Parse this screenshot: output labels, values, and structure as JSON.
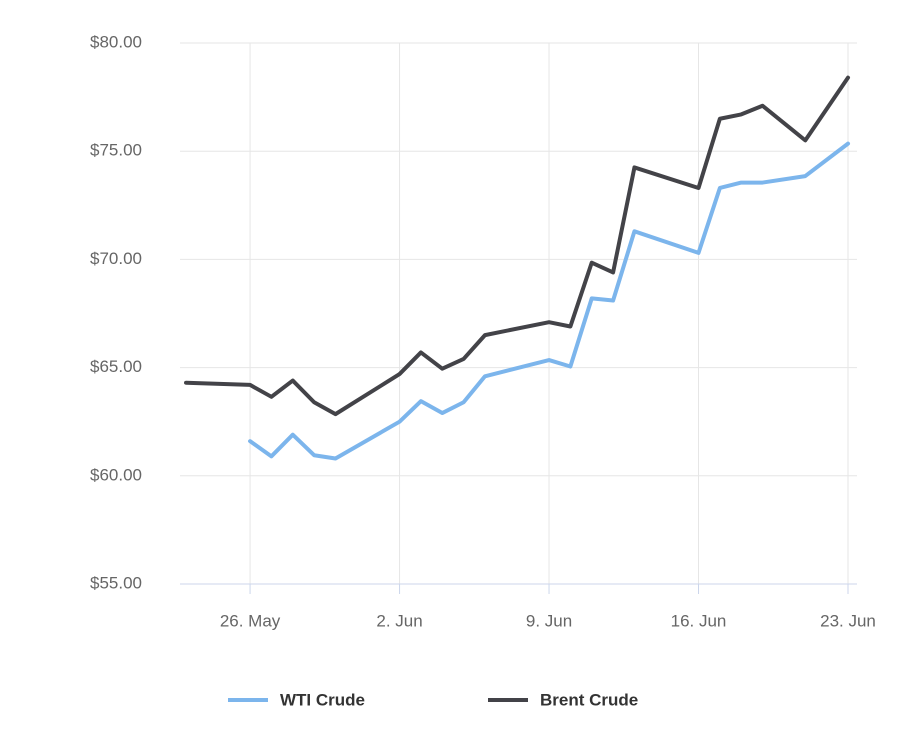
{
  "chart_data": {
    "type": "line",
    "x": [
      "23. May",
      "26. May",
      "27. May",
      "28. May",
      "29. May",
      "30. May",
      "2. Jun",
      "3. Jun",
      "4. Jun",
      "5. Jun",
      "6. Jun",
      "9. Jun",
      "10. Jun",
      "11. Jun",
      "12. Jun",
      "13. Jun",
      "16. Jun",
      "17. Jun",
      "18. Jun",
      "19. Jun",
      "21. Jun",
      "23. Jun"
    ],
    "series": [
      {
        "name": "WTI Crude",
        "color": "#7cb5ec",
        "values": [
          null,
          61.6,
          60.9,
          61.9,
          60.95,
          60.8,
          62.5,
          63.45,
          62.9,
          63.4,
          64.6,
          65.35,
          65.05,
          68.2,
          68.1,
          71.3,
          70.3,
          73.3,
          73.55,
          73.55,
          73.85,
          75.35
        ]
      },
      {
        "name": "Brent Crude",
        "color": "#434348",
        "values": [
          64.3,
          64.2,
          63.65,
          64.4,
          63.4,
          62.85,
          64.7,
          65.7,
          64.95,
          65.4,
          66.5,
          67.1,
          66.9,
          69.85,
          69.4,
          74.25,
          73.3,
          76.5,
          76.7,
          77.1,
          75.5,
          78.4
        ]
      }
    ],
    "xlim": [
      "23. May",
      "23. Jun"
    ],
    "xticks": [
      "26. May",
      "2. Jun",
      "9. Jun",
      "16. Jun",
      "23. Jun"
    ],
    "ylim": [
      55,
      80
    ],
    "yticks": [
      {
        "value": 55,
        "label": "$55.00"
      },
      {
        "value": 60,
        "label": "$60.00"
      },
      {
        "value": 65,
        "label": "$65.00"
      },
      {
        "value": 70,
        "label": "$70.00"
      },
      {
        "value": 75,
        "label": "$75.00"
      },
      {
        "value": 80,
        "label": "$80.00"
      }
    ],
    "grid": true
  }
}
